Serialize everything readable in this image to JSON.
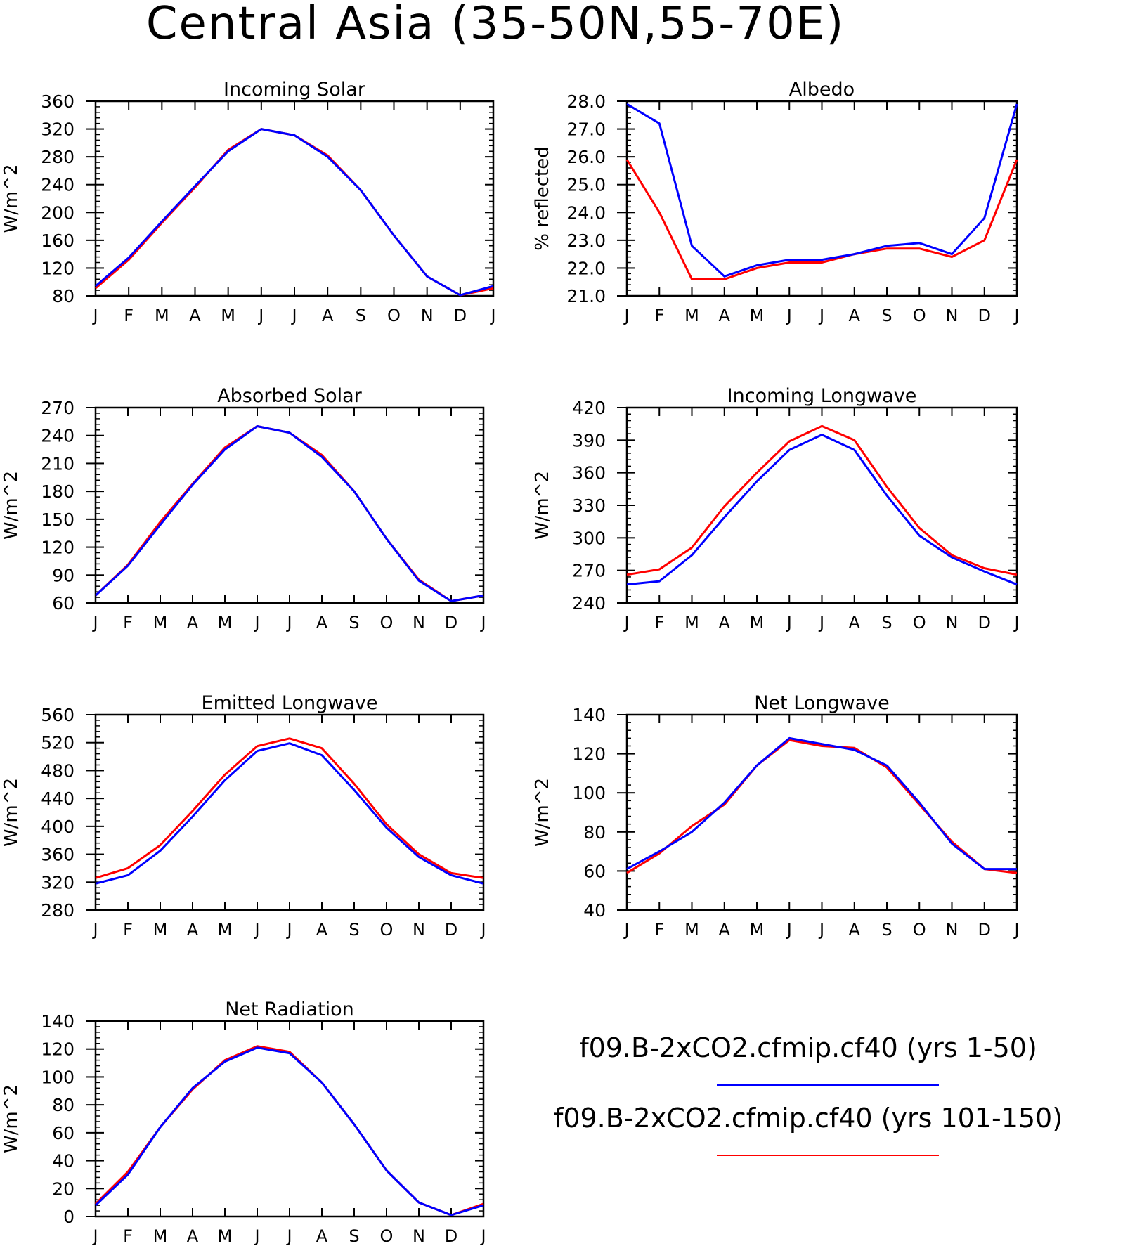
{
  "title": "Central Asia (35-50N,55-70E)",
  "legend": [
    {
      "label": "f09.B-2xCO2.cfmip.cf40 (yrs 1-50)",
      "color": "#0000ff"
    },
    {
      "label": "f09.B-2xCO2.cfmip.cf40 (yrs 101-150)",
      "color": "#ff0000"
    }
  ],
  "chart_data": [
    {
      "type": "line",
      "title": "Incoming Solar",
      "ylabel": "W/m^2",
      "x": [
        "J",
        "F",
        "M",
        "A",
        "M",
        "J",
        "J",
        "A",
        "S",
        "O",
        "N",
        "D",
        "J"
      ],
      "ylim": [
        80,
        360
      ],
      "yticks": [
        80,
        120,
        160,
        200,
        240,
        280,
        320,
        360
      ],
      "ytick_labels": [
        "80",
        "120",
        "160",
        "200",
        "240",
        "280",
        "320",
        "360"
      ],
      "series": [
        {
          "color": "#ff0000",
          "values": [
            91,
            132,
            185,
            236,
            290,
            320,
            311,
            282,
            232,
            167,
            108,
            81,
            91
          ]
        },
        {
          "color": "#0000ff",
          "values": [
            94,
            135,
            187,
            238,
            288,
            320,
            311,
            280,
            232,
            167,
            108,
            81,
            94
          ]
        }
      ]
    },
    {
      "type": "line",
      "title": "Albedo",
      "ylabel": "% reflected",
      "x": [
        "J",
        "F",
        "M",
        "A",
        "M",
        "J",
        "J",
        "A",
        "S",
        "O",
        "N",
        "D",
        "J"
      ],
      "ylim": [
        21,
        28
      ],
      "yticks": [
        21,
        22,
        23,
        24,
        25,
        26,
        27,
        28
      ],
      "ytick_labels": [
        "21.0",
        "22.0",
        "23.0",
        "24.0",
        "25.0",
        "26.0",
        "27.0",
        "28.0"
      ],
      "series": [
        {
          "color": "#ff0000",
          "values": [
            25.9,
            24.0,
            21.6,
            21.6,
            22.0,
            22.2,
            22.2,
            22.5,
            22.7,
            22.7,
            22.4,
            23.0,
            25.9
          ]
        },
        {
          "color": "#0000ff",
          "values": [
            27.9,
            27.2,
            22.8,
            21.7,
            22.1,
            22.3,
            22.3,
            22.5,
            22.8,
            22.9,
            22.5,
            23.8,
            27.9
          ]
        }
      ]
    },
    {
      "type": "line",
      "title": "Absorbed Solar",
      "ylabel": "W/m^2",
      "x": [
        "J",
        "F",
        "M",
        "A",
        "M",
        "J",
        "J",
        "A",
        "S",
        "O",
        "N",
        "D",
        "J"
      ],
      "ylim": [
        60,
        270
      ],
      "yticks": [
        60,
        90,
        120,
        150,
        180,
        210,
        240,
        270
      ],
      "ytick_labels": [
        "60",
        "90",
        "120",
        "150",
        "180",
        "210",
        "240",
        "270"
      ],
      "series": [
        {
          "color": "#ff0000",
          "values": [
            68,
            101,
            147,
            188,
            227,
            250,
            243,
            219,
            180,
            129,
            85,
            62,
            68
          ]
        },
        {
          "color": "#0000ff",
          "values": [
            68,
            100,
            144,
            187,
            225,
            250,
            243,
            217,
            180,
            129,
            84,
            62,
            68
          ]
        }
      ]
    },
    {
      "type": "line",
      "title": "Incoming Longwave",
      "ylabel": "W/m^2",
      "x": [
        "J",
        "F",
        "M",
        "A",
        "M",
        "J",
        "J",
        "A",
        "S",
        "O",
        "N",
        "D",
        "J"
      ],
      "ylim": [
        240,
        420
      ],
      "yticks": [
        240,
        270,
        300,
        330,
        360,
        390,
        420
      ],
      "ytick_labels": [
        "240",
        "270",
        "300",
        "330",
        "360",
        "390",
        "420"
      ],
      "series": [
        {
          "color": "#ff0000",
          "values": [
            266,
            271,
            291,
            329,
            360,
            389,
            403,
            390,
            347,
            309,
            284,
            272,
            266
          ]
        },
        {
          "color": "#0000ff",
          "values": [
            257,
            260,
            284,
            319,
            352,
            381,
            395,
            381,
            339,
            302,
            282,
            269,
            257
          ]
        }
      ]
    },
    {
      "type": "line",
      "title": "Emitted Longwave",
      "ylabel": "W/m^2",
      "x": [
        "J",
        "F",
        "M",
        "A",
        "M",
        "J",
        "J",
        "A",
        "S",
        "O",
        "N",
        "D",
        "J"
      ],
      "ylim": [
        280,
        560
      ],
      "yticks": [
        280,
        320,
        360,
        400,
        440,
        480,
        520,
        560
      ],
      "ytick_labels": [
        "280",
        "320",
        "360",
        "400",
        "440",
        "480",
        "520",
        "560"
      ],
      "series": [
        {
          "color": "#ff0000",
          "values": [
            326,
            340,
            373,
            422,
            474,
            515,
            526,
            512,
            461,
            403,
            360,
            333,
            326
          ]
        },
        {
          "color": "#0000ff",
          "values": [
            318,
            330,
            365,
            414,
            466,
            508,
            519,
            502,
            452,
            398,
            356,
            330,
            318
          ]
        }
      ]
    },
    {
      "type": "line",
      "title": "Net Longwave",
      "ylabel": "W/m^2",
      "x": [
        "J",
        "F",
        "M",
        "A",
        "M",
        "J",
        "J",
        "A",
        "S",
        "O",
        "N",
        "D",
        "J"
      ],
      "ylim": [
        40,
        140
      ],
      "yticks": [
        40,
        60,
        80,
        100,
        120,
        140
      ],
      "ytick_labels": [
        "40",
        "60",
        "80",
        "100",
        "120",
        "140"
      ],
      "series": [
        {
          "color": "#ff0000",
          "values": [
            59,
            69,
            83,
            94,
            114,
            127,
            124,
            123,
            113,
            94,
            75,
            61,
            59
          ]
        },
        {
          "color": "#0000ff",
          "values": [
            61,
            70,
            80,
            95,
            114,
            128,
            125,
            122,
            114,
            95,
            74,
            61,
            61
          ]
        }
      ]
    },
    {
      "type": "line",
      "title": "Net Radiation",
      "ylabel": "W/m^2",
      "x": [
        "J",
        "F",
        "M",
        "A",
        "M",
        "J",
        "J",
        "A",
        "S",
        "O",
        "N",
        "D",
        "J"
      ],
      "ylim": [
        0,
        140
      ],
      "yticks": [
        0,
        20,
        40,
        60,
        80,
        100,
        120,
        140
      ],
      "ytick_labels": [
        "0",
        "20",
        "40",
        "60",
        "80",
        "100",
        "120",
        "140"
      ],
      "series": [
        {
          "color": "#ff0000",
          "values": [
            9,
            32,
            64,
            91,
            112,
            122,
            118,
            96,
            66,
            33,
            10,
            1,
            9
          ]
        },
        {
          "color": "#0000ff",
          "values": [
            8,
            30,
            64,
            92,
            111,
            121,
            117,
            96,
            66,
            33,
            10,
            1,
            8
          ]
        }
      ]
    }
  ]
}
